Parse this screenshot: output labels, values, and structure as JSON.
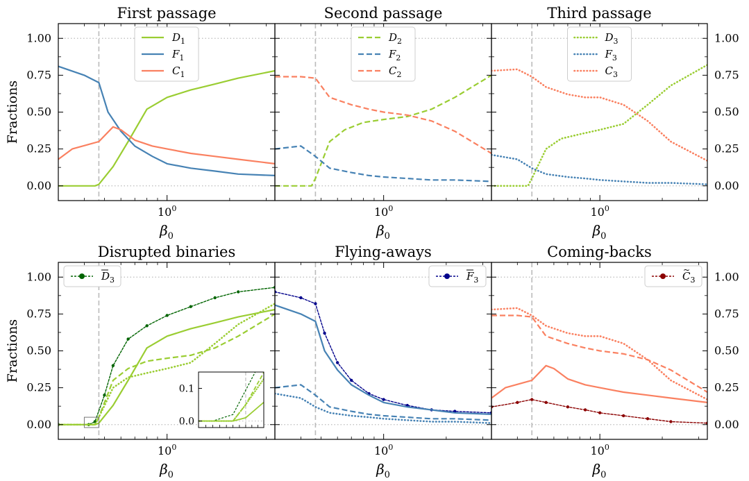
{
  "colors": {
    "D": "#9acd32",
    "F": "#4682b4",
    "C": "#fa8060",
    "Dbar": "#006400",
    "Fbar": "#00008b",
    "Cbar": "#8b0000",
    "refline": "#bbbbbb"
  },
  "shared": {
    "ylabel": "Fractions",
    "xlabel": "β",
    "xlabel_sub": "0",
    "x_tick_label": "10",
    "x_tick_sup": "0",
    "y_ticks": [
      "0.00",
      "0.25",
      "0.50",
      "0.75",
      "1.00"
    ],
    "xlim": [
      0.3,
      3.3
    ],
    "ylim": [
      -0.1,
      1.1
    ],
    "vline_beta": 0.47,
    "hlines": [
      0,
      1
    ]
  },
  "chart_data": [
    {
      "type": "line",
      "title": "First passage",
      "series": [
        {
          "key": "D",
          "name": "D",
          "sub": "1",
          "style": "solid",
          "x": [
            0.3,
            0.45,
            0.47,
            0.55,
            0.65,
            0.8,
            1.0,
            1.3,
            1.7,
            2.2,
            3.3
          ],
          "y": [
            0,
            0,
            0.01,
            0.13,
            0.3,
            0.52,
            0.6,
            0.65,
            0.69,
            0.73,
            0.78
          ]
        },
        {
          "key": "F",
          "name": "F",
          "sub": "1",
          "style": "solid",
          "x": [
            0.3,
            0.4,
            0.47,
            0.52,
            0.6,
            0.7,
            0.85,
            1.0,
            1.3,
            1.7,
            2.2,
            3.3
          ],
          "y": [
            0.81,
            0.75,
            0.7,
            0.5,
            0.37,
            0.27,
            0.2,
            0.15,
            0.12,
            0.1,
            0.08,
            0.07
          ]
        },
        {
          "key": "C",
          "name": "C",
          "sub": "1",
          "style": "solid",
          "x": [
            0.3,
            0.35,
            0.47,
            0.55,
            0.6,
            0.7,
            0.85,
            1.0,
            1.3,
            1.7,
            2.2,
            3.3
          ],
          "y": [
            0.18,
            0.25,
            0.3,
            0.4,
            0.38,
            0.31,
            0.27,
            0.25,
            0.22,
            0.2,
            0.18,
            0.15
          ]
        }
      ],
      "legend_loc": "upper-center"
    },
    {
      "type": "line",
      "title": "Second passage",
      "series": [
        {
          "key": "D",
          "name": "D",
          "sub": "2",
          "style": "dashed",
          "x": [
            0.3,
            0.45,
            0.47,
            0.55,
            0.65,
            0.8,
            1.0,
            1.3,
            1.7,
            2.2,
            3.3
          ],
          "y": [
            0,
            0,
            0.05,
            0.3,
            0.38,
            0.43,
            0.45,
            0.47,
            0.52,
            0.6,
            0.75
          ]
        },
        {
          "key": "F",
          "name": "F",
          "sub": "2",
          "style": "dashed",
          "x": [
            0.3,
            0.4,
            0.47,
            0.55,
            0.7,
            0.85,
            1.0,
            1.3,
            1.7,
            2.2,
            3.3
          ],
          "y": [
            0.25,
            0.27,
            0.2,
            0.12,
            0.09,
            0.07,
            0.06,
            0.05,
            0.04,
            0.04,
            0.03
          ]
        },
        {
          "key": "C",
          "name": "C",
          "sub": "2",
          "style": "dashed",
          "x": [
            0.3,
            0.4,
            0.47,
            0.55,
            0.7,
            0.85,
            1.0,
            1.3,
            1.7,
            2.2,
            3.3
          ],
          "y": [
            0.74,
            0.74,
            0.73,
            0.6,
            0.55,
            0.52,
            0.5,
            0.48,
            0.44,
            0.37,
            0.22
          ]
        }
      ],
      "legend_loc": "upper-center"
    },
    {
      "type": "line",
      "title": "Third passage",
      "series": [
        {
          "key": "D",
          "name": "D",
          "sub": "3",
          "style": "dotted",
          "x": [
            0.3,
            0.45,
            0.47,
            0.55,
            0.65,
            0.8,
            1.0,
            1.3,
            1.7,
            2.2,
            3.3
          ],
          "y": [
            0,
            0,
            0.05,
            0.25,
            0.32,
            0.35,
            0.38,
            0.42,
            0.55,
            0.68,
            0.82
          ]
        },
        {
          "key": "F",
          "name": "F",
          "sub": "3",
          "style": "dotted",
          "x": [
            0.3,
            0.4,
            0.47,
            0.55,
            0.7,
            0.85,
            1.0,
            1.3,
            1.7,
            2.2,
            3.3
          ],
          "y": [
            0.21,
            0.18,
            0.12,
            0.08,
            0.06,
            0.05,
            0.04,
            0.03,
            0.02,
            0.02,
            0.01
          ]
        },
        {
          "key": "C",
          "name": "C",
          "sub": "3",
          "style": "dotted",
          "x": [
            0.3,
            0.4,
            0.47,
            0.55,
            0.7,
            0.85,
            1.0,
            1.3,
            1.7,
            2.2,
            3.3
          ],
          "y": [
            0.78,
            0.79,
            0.74,
            0.67,
            0.62,
            0.6,
            0.6,
            0.55,
            0.44,
            0.3,
            0.17
          ]
        }
      ],
      "legend_loc": "upper-center"
    },
    {
      "type": "line",
      "title": "Disrupted binaries",
      "series": [
        {
          "key": "Dbar",
          "name": "D",
          "sub": "3",
          "accent": "bar",
          "style": "marker",
          "legend": true,
          "x": [
            0.3,
            0.42,
            0.45,
            0.5,
            0.55,
            0.65,
            0.8,
            1.0,
            1.3,
            1.7,
            2.2,
            3.3
          ],
          "y": [
            0,
            0,
            0.02,
            0.2,
            0.4,
            0.58,
            0.67,
            0.74,
            0.8,
            0.86,
            0.9,
            0.93
          ]
        },
        {
          "key": "D",
          "style": "solid",
          "legend": false,
          "x": [
            0.3,
            0.45,
            0.47,
            0.55,
            0.65,
            0.8,
            1.0,
            1.3,
            1.7,
            2.2,
            3.3
          ],
          "y": [
            0,
            0,
            0.01,
            0.13,
            0.3,
            0.52,
            0.6,
            0.65,
            0.69,
            0.73,
            0.78
          ]
        },
        {
          "key": "D",
          "style": "dashed",
          "legend": false,
          "x": [
            0.3,
            0.45,
            0.47,
            0.55,
            0.65,
            0.8,
            1.0,
            1.3,
            1.7,
            2.2,
            3.3
          ],
          "y": [
            0,
            0,
            0.05,
            0.3,
            0.38,
            0.43,
            0.45,
            0.47,
            0.52,
            0.6,
            0.75
          ]
        },
        {
          "key": "D",
          "style": "dotted",
          "legend": false,
          "x": [
            0.3,
            0.45,
            0.47,
            0.55,
            0.65,
            0.8,
            1.0,
            1.3,
            1.7,
            2.2,
            3.3
          ],
          "y": [
            0,
            0,
            0.05,
            0.25,
            0.32,
            0.35,
            0.38,
            0.42,
            0.55,
            0.68,
            0.82
          ]
        }
      ],
      "legend_loc": "upper-left",
      "inset": {
        "xlim": [
          0.4,
          0.5
        ],
        "ylim": [
          -0.02,
          0.15
        ],
        "y_ticks": [
          "0.0",
          "0.1"
        ]
      }
    },
    {
      "type": "line",
      "title": "Flying-aways",
      "series": [
        {
          "key": "Fbar",
          "name": "F",
          "sub": "3",
          "accent": "bar",
          "style": "marker",
          "legend": true,
          "x": [
            0.3,
            0.4,
            0.47,
            0.52,
            0.6,
            0.7,
            0.85,
            1.0,
            1.3,
            1.7,
            2.2,
            3.3
          ],
          "y": [
            0.9,
            0.86,
            0.82,
            0.62,
            0.42,
            0.3,
            0.21,
            0.17,
            0.13,
            0.1,
            0.09,
            0.08
          ]
        },
        {
          "key": "F",
          "style": "solid",
          "legend": false,
          "x": [
            0.3,
            0.4,
            0.47,
            0.52,
            0.6,
            0.7,
            0.85,
            1.0,
            1.3,
            1.7,
            2.2,
            3.3
          ],
          "y": [
            0.81,
            0.75,
            0.7,
            0.5,
            0.37,
            0.27,
            0.2,
            0.15,
            0.12,
            0.1,
            0.08,
            0.07
          ]
        },
        {
          "key": "F",
          "style": "dashed",
          "legend": false,
          "x": [
            0.3,
            0.4,
            0.47,
            0.55,
            0.7,
            0.85,
            1.0,
            1.3,
            1.7,
            2.2,
            3.3
          ],
          "y": [
            0.25,
            0.27,
            0.2,
            0.12,
            0.09,
            0.07,
            0.06,
            0.05,
            0.04,
            0.04,
            0.03
          ]
        },
        {
          "key": "F",
          "style": "dotted",
          "legend": false,
          "x": [
            0.3,
            0.4,
            0.47,
            0.55,
            0.7,
            0.85,
            1.0,
            1.3,
            1.7,
            2.2,
            3.3
          ],
          "y": [
            0.21,
            0.18,
            0.12,
            0.08,
            0.06,
            0.05,
            0.04,
            0.03,
            0.02,
            0.02,
            0.01
          ]
        }
      ],
      "legend_loc": "upper-right"
    },
    {
      "type": "line",
      "title": "Coming-backs",
      "series": [
        {
          "key": "Cbar",
          "name": "C",
          "sub": "3",
          "accent": "tilde",
          "style": "marker",
          "legend": true,
          "x": [
            0.3,
            0.4,
            0.47,
            0.55,
            0.7,
            0.85,
            1.0,
            1.3,
            1.7,
            2.2,
            3.3
          ],
          "y": [
            0.12,
            0.15,
            0.17,
            0.15,
            0.12,
            0.1,
            0.08,
            0.06,
            0.04,
            0.02,
            0.01
          ]
        },
        {
          "key": "C",
          "style": "solid",
          "legend": false,
          "x": [
            0.3,
            0.35,
            0.47,
            0.55,
            0.6,
            0.7,
            0.85,
            1.0,
            1.3,
            1.7,
            2.2,
            3.3
          ],
          "y": [
            0.18,
            0.25,
            0.3,
            0.4,
            0.38,
            0.31,
            0.27,
            0.25,
            0.22,
            0.2,
            0.18,
            0.15
          ]
        },
        {
          "key": "C",
          "style": "dashed",
          "legend": false,
          "x": [
            0.3,
            0.4,
            0.47,
            0.55,
            0.7,
            0.85,
            1.0,
            1.3,
            1.7,
            2.2,
            3.3
          ],
          "y": [
            0.74,
            0.74,
            0.73,
            0.6,
            0.55,
            0.52,
            0.5,
            0.48,
            0.44,
            0.37,
            0.22
          ]
        },
        {
          "key": "C",
          "style": "dotted",
          "legend": false,
          "x": [
            0.3,
            0.4,
            0.47,
            0.55,
            0.7,
            0.85,
            1.0,
            1.3,
            1.7,
            2.2,
            3.3
          ],
          "y": [
            0.78,
            0.79,
            0.74,
            0.67,
            0.62,
            0.6,
            0.6,
            0.55,
            0.44,
            0.3,
            0.17
          ]
        }
      ],
      "legend_loc": "upper-right"
    }
  ]
}
